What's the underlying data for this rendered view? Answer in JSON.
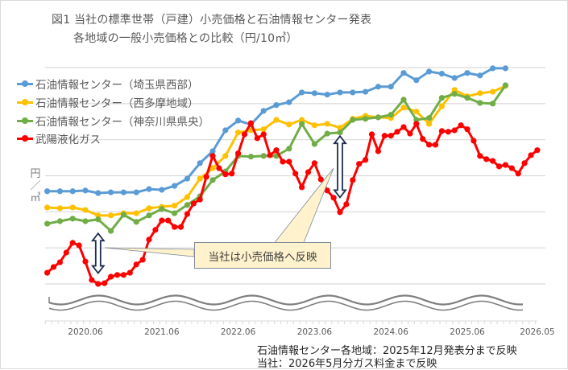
{
  "chart_data": {
    "type": "line",
    "title": [
      "図1 当社の標準世帯（戸建）小売価格と石油情報センター発表",
      "各地域の一般小売価格との比較（円/10㎥）"
    ],
    "ylabel": [
      "円",
      "／",
      "㎥"
    ],
    "xlabel": "",
    "y_tick_labels_shown": false,
    "ylim": [
      0,
      60
    ],
    "grid": true,
    "grid_step": 10,
    "axis_break": true,
    "x_start": "2019.12",
    "x_end": "2026.05",
    "x_ticks": [
      {
        "label": "2020.06",
        "month": 6
      },
      {
        "label": "2021.06",
        "month": 18
      },
      {
        "label": "2022.06",
        "month": 30
      },
      {
        "label": "2023.06",
        "month": 42
      },
      {
        "label": "2024.06",
        "month": 54
      },
      {
        "label": "2025.06",
        "month": 66
      },
      {
        "label": "2026.05",
        "month": 77
      }
    ],
    "legend_position": "top-left",
    "series": [
      {
        "name": "石油情報センター（埼玉県西部）",
        "color": "#5b9bd5",
        "month_step": 2,
        "values": [
          25.7,
          25.7,
          25.7,
          25.9,
          25.2,
          25.4,
          25.4,
          25.4,
          26.3,
          26.1,
          27.2,
          29.2,
          33.5,
          36.8,
          42.6,
          45.3,
          44.2,
          48.0,
          49.6,
          50.4,
          53.1,
          52.9,
          52.5,
          53.1,
          53.1,
          53.3,
          54.7,
          54.7,
          58.5,
          56.5,
          58.9,
          58.3,
          57.1,
          58.5,
          57.8,
          59.8,
          59.8
        ]
      },
      {
        "name": "石油情報センター（西多摩地域）",
        "color": "#ffc000",
        "month_step": 2,
        "values": [
          21.2,
          21.0,
          21.2,
          20.5,
          19.0,
          19.0,
          19.6,
          19.6,
          21.0,
          21.4,
          21.7,
          24.1,
          29.2,
          32.1,
          35.5,
          42.0,
          42.6,
          42.9,
          45.5,
          44.2,
          45.5,
          44.0,
          44.4,
          43.3,
          45.8,
          46.6,
          46.2,
          46.0,
          48.9,
          47.8,
          44.4,
          49.3,
          53.8,
          52.0,
          52.9,
          53.3,
          54.9
        ]
      },
      {
        "name": "石油情報センター（神奈川県県央）",
        "color": "#70ad47",
        "month_step": 2,
        "values": [
          16.7,
          17.4,
          18.1,
          17.4,
          17.9,
          14.7,
          19.2,
          17.2,
          19.0,
          20.8,
          19.6,
          21.9,
          24.3,
          28.8,
          31.2,
          35.5,
          35.3,
          35.5,
          35.5,
          37.5,
          44.4,
          38.8,
          41.7,
          42.0,
          45.5,
          45.8,
          46.2,
          46.9,
          51.1,
          45.5,
          46.0,
          51.6,
          52.7,
          51.6,
          50.2,
          50.0,
          55.1
        ]
      },
      {
        "name": "武陽液化ガス",
        "color": "#ff0000",
        "month_step": 1,
        "values": [
          3.1,
          4.7,
          6.0,
          8.7,
          11.4,
          10.7,
          6.2,
          1.1,
          0,
          0.2,
          2.0,
          2.5,
          2.5,
          3.1,
          5.4,
          6.7,
          12.3,
          15.0,
          17.6,
          17.6,
          15.8,
          15.8,
          19.4,
          22.3,
          23.4,
          29.7,
          35.5,
          32.1,
          30.4,
          30.6,
          36.2,
          41.5,
          44.6,
          40.4,
          41.5,
          35.7,
          37.1,
          33.9,
          33.9,
          30.6,
          26.8,
          31.0,
          33.5,
          29.0,
          25.9,
          23.9,
          19.9,
          22.1,
          28.8,
          33.3,
          34.4,
          41.5,
          36.8,
          41.1,
          41.1,
          42.2,
          43.5,
          41.7,
          44.4,
          40.2,
          38.6,
          38.6,
          42.4,
          42.2,
          42.6,
          44.0,
          42.9,
          39.7,
          35.5,
          34.6,
          34.1,
          32.6,
          33.0,
          32.1,
          30.6,
          33.5,
          35.7,
          37.1
        ]
      }
    ],
    "annotations": {
      "callout": "当社は小売価格へ反映",
      "gap_arrows": [
        {
          "month": 8,
          "from_value": 3,
          "to_value": 14
        },
        {
          "month": 46,
          "from_value": 24,
          "to_value": 41
        }
      ]
    },
    "notes": [
      "石油情報センター各地域：2025年12月発表分まで反映",
      "当社：2026年5月分ガス料金まで反映"
    ]
  }
}
